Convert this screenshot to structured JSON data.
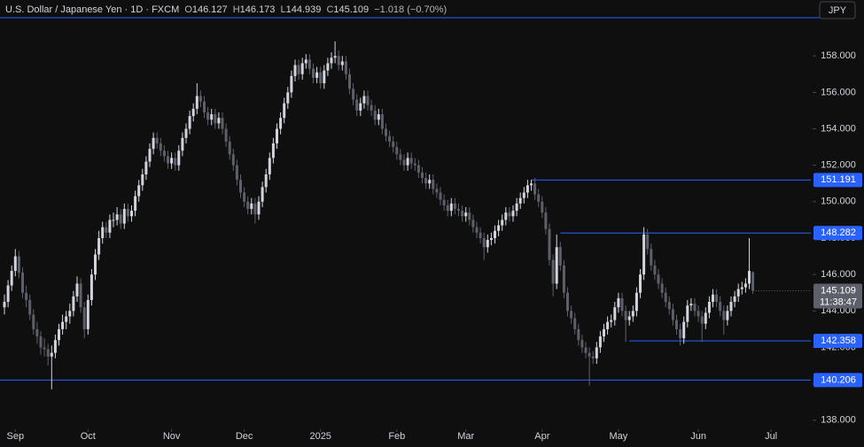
{
  "header": {
    "symbol": "U.S. Dollar / Japanese Yen · 1D · FXCM",
    "open_key": "O",
    "high_key": "H",
    "low_key": "L",
    "close_key": "C",
    "change": "−1.018 (−0.70%)"
  },
  "currency": "JPY",
  "chart_data": {
    "type": "candlestick",
    "up_color": "#d1d4dc",
    "down_color": "#5d606b",
    "level_color": "#2962ff",
    "grid": false,
    "ylim": [
      137.6,
      160.1
    ],
    "yticks": [
      {
        "value": 138,
        "label": "138.000"
      },
      {
        "value": 140,
        "label": "140.000"
      },
      {
        "value": 142,
        "label": "142.000"
      },
      {
        "value": 144,
        "label": "144.000"
      },
      {
        "value": 146,
        "label": "146.000"
      },
      {
        "value": 148,
        "label": "148.000"
      },
      {
        "value": 150,
        "label": "150.000"
      },
      {
        "value": 152,
        "label": "152.000"
      },
      {
        "value": 154,
        "label": "154.000"
      },
      {
        "value": 156,
        "label": "156.000"
      },
      {
        "value": 158,
        "label": "158.000"
      }
    ],
    "xticks": [
      {
        "value": 3,
        "label": "Sep"
      },
      {
        "value": 23,
        "label": "Oct"
      },
      {
        "value": 46,
        "label": "Nov"
      },
      {
        "value": 66,
        "label": "Dec"
      },
      {
        "value": 87,
        "label": "2025"
      },
      {
        "value": 108,
        "label": "Feb"
      },
      {
        "value": 127,
        "label": "Mar"
      },
      {
        "value": 148,
        "label": "Apr"
      },
      {
        "value": 169,
        "label": "May"
      },
      {
        "value": 191,
        "label": "Jun"
      },
      {
        "value": 211,
        "label": "Jul"
      }
    ],
    "levels": [
      151.191,
      148.282,
      142.358,
      140.206
    ],
    "countdown": "11:38:47",
    "candles": [
      [
        144.2,
        144.9,
        143.8,
        144.5
      ],
      [
        144.5,
        145.7,
        144.2,
        145.4
      ],
      [
        145.4,
        146.5,
        145.1,
        146.2
      ],
      [
        146.2,
        147.4,
        145.9,
        147.0
      ],
      [
        147.0,
        147.3,
        145.8,
        146.1
      ],
      [
        146.1,
        146.4,
        144.7,
        145.0
      ],
      [
        145.0,
        145.4,
        144.2,
        144.6
      ],
      [
        144.6,
        144.9,
        143.5,
        143.8
      ],
      [
        143.8,
        144.1,
        142.7,
        143.0
      ],
      [
        143.0,
        143.4,
        142.2,
        142.6
      ],
      [
        142.6,
        142.9,
        141.6,
        142.0
      ],
      [
        142.0,
        142.5,
        141.5,
        141.9
      ],
      [
        141.9,
        142.2,
        141.0,
        141.5
      ],
      [
        141.5,
        142.1,
        139.7,
        141.7
      ],
      [
        141.7,
        142.7,
        141.4,
        142.4
      ],
      [
        142.4,
        143.3,
        142.1,
        143.0
      ],
      [
        143.0,
        143.8,
        142.7,
        143.4
      ],
      [
        143.4,
        144.0,
        143.0,
        143.7
      ],
      [
        143.7,
        144.4,
        143.3,
        144.0
      ],
      [
        144.0,
        145.1,
        143.7,
        144.8
      ],
      [
        144.8,
        145.9,
        144.5,
        145.5
      ],
      [
        145.5,
        145.8,
        143.9,
        144.2
      ],
      [
        144.2,
        144.5,
        142.5,
        143.0
      ],
      [
        143.0,
        144.9,
        142.7,
        144.6
      ],
      [
        144.6,
        146.3,
        144.3,
        146.0
      ],
      [
        146.0,
        147.4,
        145.7,
        147.1
      ],
      [
        147.1,
        148.4,
        146.8,
        148.0
      ],
      [
        148.0,
        148.9,
        147.7,
        148.6
      ],
      [
        148.6,
        148.9,
        148.0,
        148.3
      ],
      [
        148.3,
        149.3,
        148.0,
        149.0
      ],
      [
        149.0,
        149.4,
        148.6,
        149.0
      ],
      [
        149.0,
        149.7,
        148.7,
        149.3
      ],
      [
        149.3,
        149.6,
        148.5,
        148.8
      ],
      [
        148.8,
        149.9,
        148.5,
        149.6
      ],
      [
        149.6,
        149.9,
        148.9,
        149.2
      ],
      [
        149.2,
        149.8,
        148.9,
        149.5
      ],
      [
        149.5,
        150.6,
        149.2,
        150.3
      ],
      [
        150.3,
        151.2,
        150.0,
        150.9
      ],
      [
        150.9,
        151.8,
        150.6,
        151.5
      ],
      [
        151.5,
        152.5,
        151.2,
        152.2
      ],
      [
        152.2,
        153.2,
        151.9,
        152.9
      ],
      [
        152.9,
        153.8,
        152.6,
        153.5
      ],
      [
        153.5,
        153.8,
        152.9,
        153.2
      ],
      [
        153.2,
        153.5,
        152.5,
        152.8
      ],
      [
        152.8,
        153.1,
        152.2,
        152.5
      ],
      [
        152.5,
        152.8,
        151.8,
        152.1
      ],
      [
        152.1,
        152.7,
        151.8,
        152.4
      ],
      [
        152.4,
        152.7,
        151.7,
        152.0
      ],
      [
        152.0,
        153.1,
        151.7,
        152.8
      ],
      [
        152.8,
        153.8,
        152.5,
        153.5
      ],
      [
        153.5,
        154.3,
        153.2,
        154.0
      ],
      [
        154.0,
        155.0,
        153.7,
        154.7
      ],
      [
        154.7,
        155.4,
        154.4,
        155.1
      ],
      [
        155.1,
        156.5,
        154.8,
        155.8
      ],
      [
        155.8,
        156.1,
        155.2,
        155.5
      ],
      [
        155.5,
        155.8,
        154.6,
        154.9
      ],
      [
        154.9,
        155.2,
        154.2,
        154.5
      ],
      [
        154.5,
        155.1,
        154.2,
        154.8
      ],
      [
        154.8,
        155.1,
        154.0,
        154.3
      ],
      [
        154.3,
        154.9,
        154.0,
        154.6
      ],
      [
        154.6,
        154.9,
        153.7,
        154.0
      ],
      [
        154.0,
        154.3,
        153.0,
        153.3
      ],
      [
        153.3,
        153.6,
        152.3,
        152.6
      ],
      [
        152.6,
        152.9,
        151.7,
        152.0
      ],
      [
        152.0,
        152.3,
        150.9,
        151.2
      ],
      [
        151.2,
        151.5,
        150.2,
        150.5
      ],
      [
        150.5,
        150.8,
        149.7,
        150.0
      ],
      [
        150.0,
        150.3,
        149.3,
        149.6
      ],
      [
        149.6,
        150.2,
        149.3,
        149.9
      ],
      [
        149.9,
        150.2,
        148.8,
        149.3
      ],
      [
        149.3,
        150.3,
        149.0,
        150.0
      ],
      [
        150.0,
        151.1,
        149.7,
        150.8
      ],
      [
        150.8,
        151.8,
        150.5,
        151.5
      ],
      [
        151.5,
        152.7,
        151.2,
        152.4
      ],
      [
        152.4,
        153.5,
        152.1,
        153.2
      ],
      [
        153.2,
        154.3,
        152.9,
        154.0
      ],
      [
        154.0,
        154.9,
        153.7,
        154.6
      ],
      [
        154.6,
        155.7,
        154.3,
        155.4
      ],
      [
        155.4,
        156.3,
        155.1,
        156.0
      ],
      [
        156.0,
        157.2,
        155.7,
        156.9
      ],
      [
        156.9,
        157.8,
        156.6,
        157.5
      ],
      [
        157.5,
        157.8,
        156.7,
        157.0
      ],
      [
        157.0,
        157.9,
        156.7,
        157.6
      ],
      [
        157.6,
        158.1,
        157.3,
        157.8
      ],
      [
        157.8,
        158.1,
        157.0,
        157.3
      ],
      [
        157.3,
        157.6,
        156.5,
        156.8
      ],
      [
        156.8,
        157.4,
        156.5,
        157.1
      ],
      [
        157.1,
        157.4,
        156.2,
        156.5
      ],
      [
        156.5,
        157.5,
        156.2,
        157.2
      ],
      [
        157.2,
        157.9,
        156.9,
        157.6
      ],
      [
        157.6,
        158.2,
        157.3,
        157.9
      ],
      [
        157.9,
        158.8,
        157.6,
        158.0
      ],
      [
        158.0,
        158.3,
        157.2,
        157.5
      ],
      [
        157.5,
        158.0,
        157.2,
        157.7
      ],
      [
        157.7,
        158.0,
        156.7,
        157.0
      ],
      [
        157.0,
        157.3,
        155.9,
        156.2
      ],
      [
        156.2,
        156.5,
        155.3,
        155.6
      ],
      [
        155.6,
        155.9,
        154.7,
        155.0
      ],
      [
        155.0,
        155.7,
        154.7,
        155.4
      ],
      [
        155.4,
        156.1,
        155.1,
        155.8
      ],
      [
        155.8,
        156.1,
        155.0,
        155.3
      ],
      [
        155.3,
        155.6,
        154.7,
        155.0
      ],
      [
        155.0,
        155.3,
        154.2,
        154.5
      ],
      [
        154.5,
        155.1,
        154.2,
        154.8
      ],
      [
        154.8,
        155.1,
        153.7,
        154.0
      ],
      [
        154.0,
        154.3,
        153.3,
        153.6
      ],
      [
        153.6,
        153.9,
        153.0,
        153.3
      ],
      [
        153.3,
        153.6,
        152.7,
        153.0
      ],
      [
        153.0,
        153.3,
        152.3,
        152.6
      ],
      [
        152.6,
        152.9,
        152.0,
        152.3
      ],
      [
        152.3,
        152.6,
        151.7,
        152.0
      ],
      [
        152.0,
        152.7,
        151.7,
        152.4
      ],
      [
        152.4,
        152.7,
        151.8,
        152.1
      ],
      [
        152.1,
        152.4,
        151.7,
        152.0
      ],
      [
        152.0,
        152.3,
        151.3,
        151.6
      ],
      [
        151.6,
        151.9,
        151.0,
        151.3
      ],
      [
        151.3,
        151.6,
        150.7,
        151.0
      ],
      [
        151.0,
        151.5,
        150.7,
        151.2
      ],
      [
        151.2,
        151.5,
        150.4,
        150.7
      ],
      [
        150.7,
        151.0,
        150.2,
        150.5
      ],
      [
        150.5,
        150.8,
        149.8,
        150.1
      ],
      [
        150.1,
        150.4,
        149.5,
        149.8
      ],
      [
        149.8,
        150.1,
        149.2,
        149.5
      ],
      [
        149.5,
        150.2,
        149.2,
        149.9
      ],
      [
        149.9,
        150.2,
        149.3,
        149.6
      ],
      [
        149.6,
        149.9,
        149.2,
        149.5
      ],
      [
        149.5,
        149.8,
        148.9,
        149.2
      ],
      [
        149.2,
        149.7,
        148.9,
        149.4
      ],
      [
        149.4,
        149.7,
        148.7,
        149.0
      ],
      [
        149.0,
        149.3,
        148.3,
        148.6
      ],
      [
        148.6,
        148.9,
        148.0,
        148.3
      ],
      [
        148.3,
        148.6,
        147.7,
        148.0
      ],
      [
        148.0,
        148.3,
        146.8,
        147.5
      ],
      [
        147.5,
        148.2,
        147.2,
        147.9
      ],
      [
        147.9,
        148.3,
        147.6,
        148.0
      ],
      [
        148.0,
        148.7,
        147.7,
        148.4
      ],
      [
        148.4,
        149.0,
        148.1,
        148.7
      ],
      [
        148.7,
        149.3,
        148.4,
        149.0
      ],
      [
        149.0,
        149.7,
        148.7,
        149.4
      ],
      [
        149.4,
        149.7,
        148.9,
        149.2
      ],
      [
        149.2,
        149.8,
        148.9,
        149.5
      ],
      [
        149.5,
        150.2,
        149.2,
        149.9
      ],
      [
        149.9,
        150.5,
        149.6,
        150.2
      ],
      [
        150.2,
        150.8,
        149.9,
        150.5
      ],
      [
        150.5,
        151.2,
        150.2,
        150.9
      ],
      [
        150.9,
        151.2,
        150.6,
        151.0
      ],
      [
        151.0,
        151.3,
        150.1,
        150.4
      ],
      [
        150.4,
        150.7,
        149.7,
        150.0
      ],
      [
        150.0,
        150.3,
        149.1,
        149.4
      ],
      [
        149.4,
        149.7,
        148.2,
        148.5
      ],
      [
        148.5,
        148.8,
        146.5,
        146.8
      ],
      [
        146.8,
        147.1,
        144.8,
        145.5
      ],
      [
        145.5,
        148.2,
        145.2,
        147.5
      ],
      [
        147.5,
        147.8,
        146.2,
        146.5
      ],
      [
        146.5,
        146.8,
        144.7,
        145.0
      ],
      [
        145.0,
        145.3,
        143.7,
        144.0
      ],
      [
        144.0,
        144.3,
        143.3,
        143.6
      ],
      [
        143.6,
        143.9,
        142.7,
        143.0
      ],
      [
        143.0,
        143.3,
        142.1,
        142.4
      ],
      [
        142.4,
        142.7,
        141.7,
        142.0
      ],
      [
        142.0,
        142.3,
        141.4,
        141.7
      ],
      [
        141.7,
        142.0,
        139.9,
        141.5
      ],
      [
        141.5,
        141.8,
        141.1,
        141.4
      ],
      [
        141.4,
        142.3,
        141.1,
        142.0
      ],
      [
        142.0,
        142.9,
        141.7,
        142.6
      ],
      [
        142.6,
        143.3,
        142.3,
        143.0
      ],
      [
        143.0,
        143.7,
        142.7,
        143.4
      ],
      [
        143.4,
        143.8,
        143.1,
        143.5
      ],
      [
        143.5,
        144.5,
        143.2,
        144.2
      ],
      [
        144.2,
        145.0,
        143.9,
        144.7
      ],
      [
        144.7,
        145.0,
        143.7,
        144.0
      ],
      [
        144.0,
        144.3,
        142.3,
        143.5
      ],
      [
        143.5,
        144.0,
        143.2,
        143.7
      ],
      [
        143.7,
        144.3,
        143.4,
        144.0
      ],
      [
        144.0,
        145.3,
        143.7,
        145.0
      ],
      [
        145.0,
        146.3,
        144.7,
        146.0
      ],
      [
        146.0,
        148.6,
        145.7,
        148.2
      ],
      [
        148.2,
        148.5,
        147.1,
        147.4
      ],
      [
        147.4,
        147.7,
        146.2,
        146.5
      ],
      [
        146.5,
        146.8,
        145.7,
        146.0
      ],
      [
        146.0,
        146.3,
        145.2,
        145.5
      ],
      [
        145.5,
        145.8,
        144.7,
        145.0
      ],
      [
        145.0,
        145.3,
        144.2,
        144.5
      ],
      [
        144.5,
        144.8,
        143.8,
        144.1
      ],
      [
        144.1,
        144.4,
        143.2,
        143.5
      ],
      [
        143.5,
        143.8,
        142.7,
        143.0
      ],
      [
        143.0,
        143.3,
        142.1,
        142.5
      ],
      [
        142.5,
        143.7,
        142.2,
        143.4
      ],
      [
        143.4,
        144.6,
        143.1,
        144.3
      ],
      [
        144.3,
        144.7,
        144.0,
        144.4
      ],
      [
        144.4,
        144.7,
        143.7,
        144.0
      ],
      [
        144.0,
        144.3,
        143.4,
        143.7
      ],
      [
        143.7,
        144.0,
        142.3,
        143.3
      ],
      [
        143.3,
        144.2,
        143.0,
        143.9
      ],
      [
        143.9,
        144.8,
        143.6,
        144.5
      ],
      [
        144.5,
        145.2,
        144.2,
        144.9
      ],
      [
        144.9,
        145.2,
        144.2,
        144.5
      ],
      [
        144.5,
        144.8,
        143.7,
        144.0
      ],
      [
        144.0,
        144.3,
        142.7,
        143.5
      ],
      [
        143.5,
        144.3,
        143.2,
        144.0
      ],
      [
        144.0,
        144.8,
        143.7,
        144.5
      ],
      [
        144.5,
        145.1,
        144.2,
        144.8
      ],
      [
        144.8,
        145.5,
        144.5,
        145.2
      ],
      [
        145.2,
        145.6,
        144.9,
        145.3
      ],
      [
        145.3,
        145.8,
        145.0,
        145.5
      ],
      [
        145.5,
        148.0,
        145.2,
        146.2
      ],
      [
        146.127,
        146.173,
        144.939,
        145.109
      ]
    ]
  }
}
